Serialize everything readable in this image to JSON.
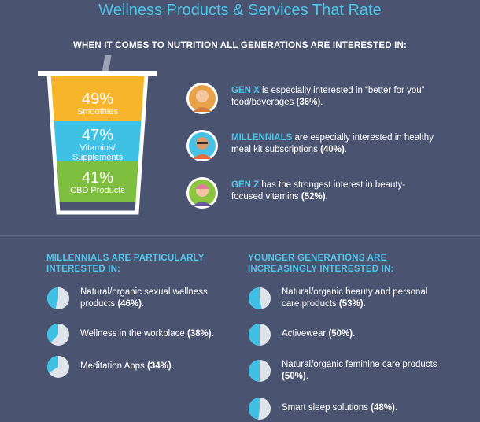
{
  "title": "Wellness Products & Services That Rate",
  "subtitle": "WHEN IT COMES TO NUTRITION ALL GENERATIONS ARE INTERESTED IN:",
  "cup": {
    "segments": [
      {
        "pct": "49%",
        "label": "Smoothies",
        "color": "#f7b52c"
      },
      {
        "pct": "47%",
        "label": "Vitamins/ Supplements",
        "label_line1": "Vitamins/",
        "label_line2": "Supplements",
        "color": "#3fc1e6"
      },
      {
        "pct": "41%",
        "label": "CBD Products",
        "color": "#7fbf3f"
      }
    ]
  },
  "generations": [
    {
      "name": "GEN X",
      "text": " is especially interested in “better for you” food/beverages ",
      "stat": "(36%)",
      "end": ".",
      "avatar_color": "#e9a24a"
    },
    {
      "name": "MILLENNIALS",
      "text": " are especially interested in healthy meal kit subscriptions ",
      "stat": "(40%)",
      "end": ".",
      "avatar_color": "#47c1e6"
    },
    {
      "name": "GEN Z",
      "text": " has the strongest interest in beauty-focused vitamins ",
      "stat": "(52%)",
      "end": ".",
      "avatar_color": "#8cc63f"
    }
  ],
  "millennials": {
    "heading_line1": "MILLENNIALS ARE PARTICULARLY",
    "heading_line2": "INTERESTED IN:",
    "items": [
      {
        "text": "Natural/organic sexual wellness products ",
        "stat": "(46%)",
        "end": ".",
        "value": 46
      },
      {
        "text": "Wellness in the workplace ",
        "stat": "(38%)",
        "end": ".",
        "value": 38
      },
      {
        "text": "Meditation Apps ",
        "stat": "(34%)",
        "end": ".",
        "value": 34
      }
    ]
  },
  "younger": {
    "heading_line1": "YOUNGER GENERATIONS ARE",
    "heading_line2": "INCREASINGLY INTERESTED IN:",
    "items": [
      {
        "text": "Natural/organic beauty and personal care products ",
        "stat": "(53%)",
        "end": ".",
        "value": 53
      },
      {
        "text": "Activewear ",
        "stat": "(50%)",
        "end": ".",
        "value": 50
      },
      {
        "text": "Natural/organic feminine care products ",
        "stat": "(50%)",
        "end": ".",
        "value": 50
      },
      {
        "text": "Smart sleep solutions ",
        "stat": "(48%)",
        "end": ".",
        "value": 48
      }
    ]
  },
  "colors": {
    "background": "#4a5470",
    "accent": "#4fc3e8",
    "pie_fill": "#3fc1e6",
    "pie_bg": "#dfe3ea"
  }
}
